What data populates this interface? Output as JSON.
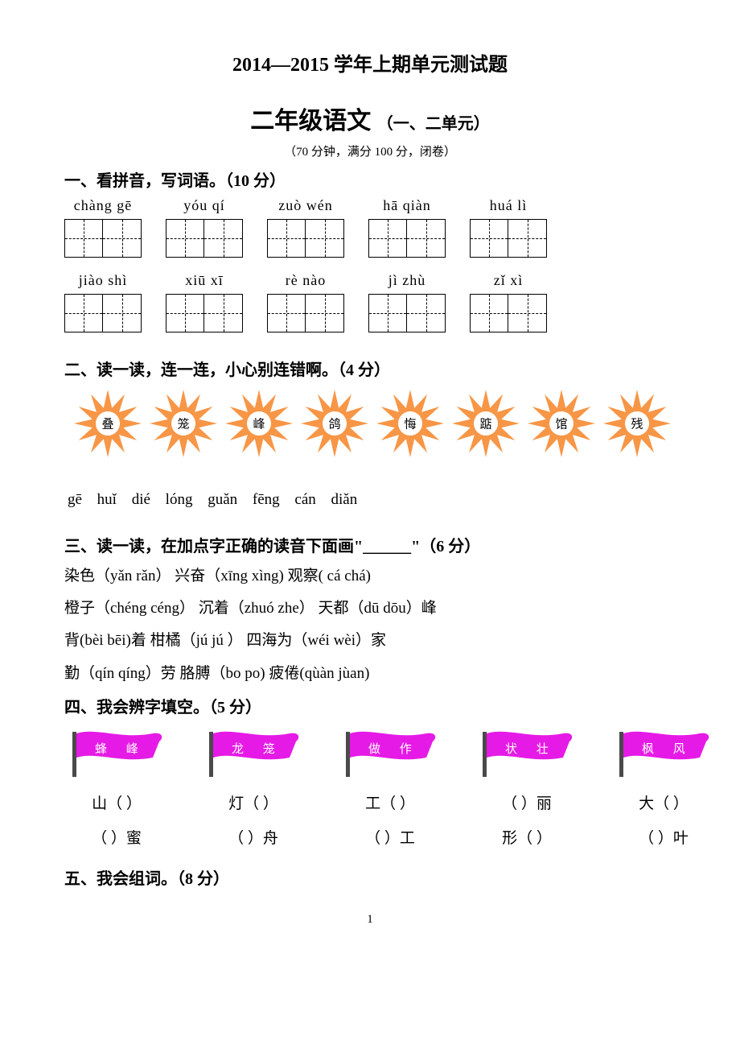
{
  "header": {
    "title1": "2014—2015 学年上期单元测试题",
    "title2_main": "二年级语文",
    "title2_sub": "（一、二单元）",
    "exam_info": "（70 分钟，满分 100 分，闭卷）"
  },
  "q1": {
    "heading": "一、看拼音，写词语。（10 分）",
    "row1": [
      {
        "pinyin": "chàng gē"
      },
      {
        "pinyin": "yóu  qí"
      },
      {
        "pinyin": "zuò  wén"
      },
      {
        "pinyin": "hā  qiàn"
      },
      {
        "pinyin": "huá  lì"
      }
    ],
    "row2": [
      {
        "pinyin": "jiào shì"
      },
      {
        "pinyin": "xiū  xī"
      },
      {
        "pinyin": "rè  nào"
      },
      {
        "pinyin": "jì  zhù"
      },
      {
        "pinyin": "zǐ  xì"
      }
    ]
  },
  "q2": {
    "heading": "二、读一读，连一连，小心别连错啊。（4 分）",
    "stars": [
      "叠",
      "笼",
      "峰",
      "鸽",
      "悔",
      "踮",
      "馆",
      "残"
    ],
    "pinyin_line": "gē   huǐ   dié   lóng   guǎn   fēng      cán   diǎn",
    "star_fill": "#f79646",
    "star_center_fill": "#ffffff"
  },
  "q3": {
    "heading": "三、读一读，在加点字正确的读音下面画\"______\"（6 分）",
    "lines": [
      "染色（yǎn rǎn）     兴奋（xīng xìng)    观察( cá chá)",
      "橙子（chéng céng）   沉着（zhuó zhe）   天都（dū  dōu）峰",
      "背(bèi  bēi)着     柑橘（jú  jú ）   四海为（wéi  wèi）家",
      "勤（qín  qíng）劳   胳膊（bo  po)     疲倦(qùàn   jùan)"
    ]
  },
  "q4": {
    "heading": "四、我会辨字填空。（5 分）",
    "flags": [
      {
        "chars": "蜂 峰",
        "line1": "山（  ）",
        "line2": "（  ）蜜"
      },
      {
        "chars": "龙 笼",
        "line1": "灯（  ）",
        "line2": "（  ）舟"
      },
      {
        "chars": "做 作",
        "line1": "工（  ）",
        "line2": "（  ）工"
      },
      {
        "chars": "状 壮",
        "line1": "（  ）丽",
        "line2": "形（  ）"
      },
      {
        "chars": "枫 风",
        "line1": "大（  ）",
        "line2": "（  ）叶"
      }
    ],
    "flag_fill": "#e61ae6",
    "pole_fill": "#4a4a4a"
  },
  "q5": {
    "heading": "五、我会组词。（8 分）"
  },
  "page_number": "1"
}
